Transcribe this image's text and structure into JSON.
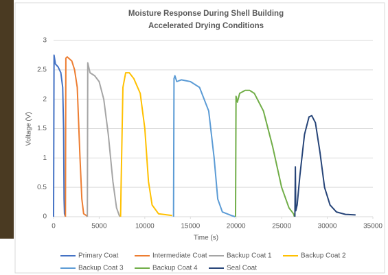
{
  "chart_data": {
    "type": "line",
    "title": "Moisture Response During Shell Building",
    "subtitle": "Accelerated Drying Conditions",
    "x_label": "Time (s)",
    "y_label": "Voltage (V)",
    "xlim": [
      0,
      35000
    ],
    "xticks": [
      0,
      5000,
      10000,
      15000,
      20000,
      25000,
      30000,
      35000
    ],
    "ylim": [
      0,
      3
    ],
    "yticks": [
      0,
      0.5,
      1,
      1.5,
      2,
      2.5,
      3
    ],
    "grid": true,
    "legend": "bottom",
    "series": [
      {
        "name": "Primary Coat",
        "color": "#4472c4",
        "x": [
          0,
          50,
          200,
          500,
          800,
          1000,
          1100,
          1150,
          1200,
          1300
        ],
        "values": [
          0,
          2.75,
          2.6,
          2.55,
          2.45,
          2.2,
          1.5,
          0.3,
          0.05,
          0
        ]
      },
      {
        "name": "Intermediate Coat",
        "color": "#ed7d31",
        "x": [
          1300,
          1350,
          1500,
          2000,
          2300,
          2600,
          2900,
          3100,
          3300,
          3600,
          3700
        ],
        "values": [
          0,
          2.7,
          2.72,
          2.65,
          2.5,
          2.2,
          1.0,
          0.3,
          0.05,
          0.02,
          0
        ]
      },
      {
        "name": "Backup Coat 1",
        "color": "#a5a5a5",
        "x": [
          3700,
          3750,
          4000,
          4500,
          5000,
          5500,
          6000,
          6500,
          6900,
          7200,
          7300
        ],
        "values": [
          0,
          2.62,
          2.45,
          2.4,
          2.3,
          2.0,
          1.4,
          0.6,
          0.15,
          0.02,
          0
        ]
      },
      {
        "name": "Backup Coat 2",
        "color": "#ffc000",
        "x": [
          7350,
          7400,
          7600,
          7900,
          8300,
          8800,
          9500,
          10000,
          10400,
          10800,
          11500,
          13000
        ],
        "values": [
          0,
          0.5,
          2.2,
          2.45,
          2.45,
          2.35,
          2.1,
          1.5,
          0.6,
          0.2,
          0.05,
          0.02
        ]
      },
      {
        "name": "Backup Coat 3",
        "color": "#5b9bd5",
        "x": [
          13150,
          13200,
          13300,
          13500,
          14000,
          15000,
          16000,
          17000,
          17600,
          18000,
          18500,
          19500,
          19900
        ],
        "values": [
          0,
          2.35,
          2.4,
          2.3,
          2.33,
          2.3,
          2.2,
          1.8,
          1.0,
          0.3,
          0.08,
          0.02,
          0
        ]
      },
      {
        "name": "Backup Coat 4",
        "color": "#70ad47",
        "x": [
          19950,
          20000,
          20150,
          20400,
          21000,
          21500,
          22000,
          23000,
          24000,
          25000,
          25800,
          26300,
          26400
        ],
        "values": [
          0,
          2.05,
          1.95,
          2.1,
          2.15,
          2.15,
          2.1,
          1.8,
          1.2,
          0.5,
          0.15,
          0.05,
          0
        ]
      },
      {
        "name": "Seal Coat",
        "color": "#264478",
        "x": [
          26450,
          26500,
          26550,
          26700,
          27000,
          27500,
          28000,
          28300,
          28700,
          29200,
          29700,
          30300,
          31000,
          32000,
          33100
        ],
        "values": [
          0,
          0.85,
          0.1,
          0.2,
          0.7,
          1.4,
          1.7,
          1.72,
          1.6,
          1.1,
          0.5,
          0.2,
          0.08,
          0.04,
          0.03
        ]
      }
    ]
  }
}
